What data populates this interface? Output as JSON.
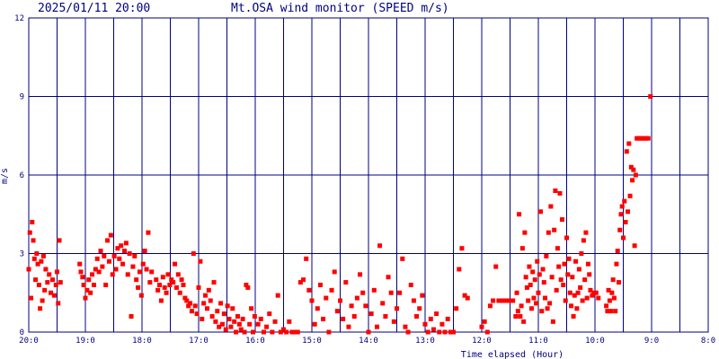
{
  "header": {
    "timestamp": "2025/01/11 20:00",
    "title": "Mt.OSA wind monitor (SPEED m/s)"
  },
  "chart_data": {
    "type": "scatter",
    "title": "Mt.OSA wind monitor (SPEED m/s)",
    "xlabel": "Time elapsed (Hour)",
    "ylabel": "m/s",
    "x_unit": "hours before 20:00",
    "xlim": [
      0,
      12
    ],
    "ylim": [
      0,
      12
    ],
    "x_reversed_time_labels": true,
    "x_tick_values": [
      0,
      1,
      2,
      3,
      4,
      5,
      6,
      7,
      8,
      9,
      10,
      11,
      12
    ],
    "x_tick_labels": [
      "20:0",
      "19:0",
      "18:0",
      "17:0",
      "16:0",
      "15:0",
      "14:0",
      "13:0",
      "12:0",
      "11:0",
      "10:0",
      "9:0",
      "8:0"
    ],
    "y_ticks": [
      0,
      3,
      6,
      9,
      12
    ],
    "y_tick_labels": [
      "0",
      "3",
      "6",
      "9",
      "12"
    ],
    "grid": true,
    "marker_color": "#ff0000",
    "grid_color": "#000080",
    "series": [
      {
        "points": [
          [
            0.0,
            2.4
          ],
          [
            0.02,
            3.8
          ],
          [
            0.04,
            1.3
          ],
          [
            0.06,
            4.2
          ],
          [
            0.08,
            3.5
          ],
          [
            0.1,
            2.8
          ],
          [
            0.12,
            2.0
          ],
          [
            0.14,
            3.0
          ],
          [
            0.16,
            2.6
          ],
          [
            0.18,
            1.8
          ],
          [
            0.2,
            0.9
          ],
          [
            0.22,
            2.7
          ],
          [
            0.24,
            1.2
          ],
          [
            0.26,
            2.9
          ],
          [
            0.28,
            1.6
          ],
          [
            0.3,
            2.4
          ],
          [
            0.33,
            1.9
          ],
          [
            0.36,
            2.2
          ],
          [
            0.39,
            1.5
          ],
          [
            0.42,
            2.0
          ],
          [
            0.45,
            1.4
          ],
          [
            0.48,
            1.8
          ],
          [
            0.5,
            2.3
          ],
          [
            0.52,
            1.1
          ],
          [
            0.54,
            3.5
          ],
          [
            0.56,
            1.9
          ],
          [
            0.9,
            2.6
          ],
          [
            0.92,
            2.3
          ],
          [
            0.95,
            2.1
          ],
          [
            0.97,
            1.8
          ],
          [
            1.0,
            1.3
          ],
          [
            1.03,
            1.6
          ],
          [
            1.06,
            2.0
          ],
          [
            1.09,
            1.5
          ],
          [
            1.12,
            2.2
          ],
          [
            1.15,
            1.8
          ],
          [
            1.18,
            2.4
          ],
          [
            1.21,
            2.8
          ],
          [
            1.24,
            2.3
          ],
          [
            1.27,
            3.1
          ],
          [
            1.3,
            2.5
          ],
          [
            1.33,
            2.9
          ],
          [
            1.36,
            1.8
          ],
          [
            1.39,
            3.5
          ],
          [
            1.42,
            2.7
          ],
          [
            1.45,
            3.7
          ],
          [
            1.48,
            2.2
          ],
          [
            1.51,
            2.9
          ],
          [
            1.54,
            2.4
          ],
          [
            1.57,
            3.2
          ],
          [
            1.6,
            2.8
          ],
          [
            1.63,
            3.3
          ],
          [
            1.66,
            2.6
          ],
          [
            1.69,
            3.1
          ],
          [
            1.72,
            3.4
          ],
          [
            1.75,
            2.2
          ],
          [
            1.78,
            3.0
          ],
          [
            1.81,
            0.6
          ],
          [
            1.84,
            2.5
          ],
          [
            1.87,
            2.9
          ],
          [
            1.9,
            2.0
          ],
          [
            1.93,
            1.7
          ],
          [
            1.96,
            2.3
          ],
          [
            1.99,
            1.4
          ],
          [
            2.02,
            2.6
          ],
          [
            2.05,
            3.1
          ],
          [
            2.08,
            2.4
          ],
          [
            2.11,
            3.8
          ],
          [
            2.14,
            1.9
          ],
          [
            2.17,
            2.3
          ],
          [
            2.25,
            2.0
          ],
          [
            2.28,
            1.6
          ],
          [
            2.31,
            1.8
          ],
          [
            2.34,
            1.2
          ],
          [
            2.37,
            2.1
          ],
          [
            2.4,
            1.7
          ],
          [
            2.43,
            1.5
          ],
          [
            2.46,
            2.2
          ],
          [
            2.49,
            1.8
          ],
          [
            2.52,
            2.0
          ],
          [
            2.55,
            1.9
          ],
          [
            2.58,
            2.6
          ],
          [
            2.61,
            1.7
          ],
          [
            2.64,
            2.2
          ],
          [
            2.67,
            1.5
          ],
          [
            2.7,
            2.0
          ],
          [
            2.73,
            1.8
          ],
          [
            2.76,
            1.3
          ],
          [
            2.79,
            1.2
          ],
          [
            2.82,
            1.0
          ],
          [
            2.85,
            1.1
          ],
          [
            2.88,
            0.8
          ],
          [
            2.91,
            3.0
          ],
          [
            2.94,
            1.0
          ],
          [
            2.97,
            0.7
          ],
          [
            3.0,
            1.7
          ],
          [
            3.03,
            2.7
          ],
          [
            3.06,
            0.5
          ],
          [
            3.09,
            1.1
          ],
          [
            3.12,
            1.4
          ],
          [
            3.15,
            0.9
          ],
          [
            3.18,
            1.6
          ],
          [
            3.21,
            1.2
          ],
          [
            3.24,
            0.6
          ],
          [
            3.27,
            1.9
          ],
          [
            3.3,
            0.4
          ],
          [
            3.33,
            0.8
          ],
          [
            3.36,
            0.2
          ],
          [
            3.39,
            1.1
          ],
          [
            3.42,
            0.3
          ],
          [
            3.45,
            0.7
          ],
          [
            3.48,
            0.1
          ],
          [
            3.51,
            1.0
          ],
          [
            3.54,
            0.5
          ],
          [
            3.57,
            0.2
          ],
          [
            3.6,
            0.9
          ],
          [
            3.63,
            0.4
          ],
          [
            3.66,
            0.0
          ],
          [
            3.69,
            0.6
          ],
          [
            3.72,
            0.3
          ],
          [
            3.75,
            0.1
          ],
          [
            3.78,
            0.5
          ],
          [
            3.81,
            0.0
          ],
          [
            3.84,
            1.8
          ],
          [
            3.87,
            1.7
          ],
          [
            3.9,
            0.3
          ],
          [
            3.93,
            0.9
          ],
          [
            3.96,
            0.0
          ],
          [
            3.99,
            0.6
          ],
          [
            4.05,
            0.3
          ],
          [
            4.1,
            0.5
          ],
          [
            4.15,
            0.0
          ],
          [
            4.2,
            0.2
          ],
          [
            4.25,
            0.7
          ],
          [
            4.3,
            0.0
          ],
          [
            4.35,
            0.4
          ],
          [
            4.4,
            1.4
          ],
          [
            4.45,
            0.0
          ],
          [
            4.5,
            0.1
          ],
          [
            4.55,
            0.0
          ],
          [
            4.6,
            0.4
          ],
          [
            4.65,
            0.0
          ],
          [
            4.7,
            0.0
          ],
          [
            4.75,
            0.0
          ],
          [
            4.8,
            1.9
          ],
          [
            4.85,
            2.0
          ],
          [
            4.9,
            2.8
          ],
          [
            4.95,
            1.6
          ],
          [
            5.0,
            1.2
          ],
          [
            5.05,
            0.3
          ],
          [
            5.1,
            0.9
          ],
          [
            5.15,
            1.8
          ],
          [
            5.2,
            0.5
          ],
          [
            5.25,
            1.3
          ],
          [
            5.3,
            0.0
          ],
          [
            5.35,
            1.6
          ],
          [
            5.4,
            2.3
          ],
          [
            5.45,
            0.8
          ],
          [
            5.5,
            1.2
          ],
          [
            5.55,
            0.5
          ],
          [
            5.6,
            1.9
          ],
          [
            5.65,
            0.2
          ],
          [
            5.7,
            1.0
          ],
          [
            5.75,
            0.6
          ],
          [
            5.8,
            1.3
          ],
          [
            5.85,
            2.2
          ],
          [
            5.9,
            1.5
          ],
          [
            5.95,
            1.0
          ],
          [
            6.0,
            0.0
          ],
          [
            6.05,
            0.7
          ],
          [
            6.1,
            1.6
          ],
          [
            6.15,
            0.2
          ],
          [
            6.2,
            3.3
          ],
          [
            6.25,
            1.1
          ],
          [
            6.3,
            0.6
          ],
          [
            6.35,
            2.1
          ],
          [
            6.4,
            1.5
          ],
          [
            6.45,
            0.4
          ],
          [
            6.5,
            0.9
          ],
          [
            6.55,
            1.5
          ],
          [
            6.6,
            2.8
          ],
          [
            6.65,
            0.2
          ],
          [
            6.7,
            0.0
          ],
          [
            6.75,
            1.8
          ],
          [
            6.8,
            1.2
          ],
          [
            6.85,
            0.6
          ],
          [
            6.9,
            0.9
          ],
          [
            6.95,
            1.4
          ],
          [
            7.0,
            0.3
          ],
          [
            7.05,
            0.0
          ],
          [
            7.1,
            0.5
          ],
          [
            7.15,
            0.1
          ],
          [
            7.2,
            0.7
          ],
          [
            7.25,
            0.0
          ],
          [
            7.3,
            0.3
          ],
          [
            7.35,
            0.0
          ],
          [
            7.4,
            0.5
          ],
          [
            7.45,
            0.0
          ],
          [
            7.5,
            0.0
          ],
          [
            7.55,
            0.9
          ],
          [
            7.6,
            2.4
          ],
          [
            7.65,
            3.2
          ],
          [
            7.7,
            1.4
          ],
          [
            7.75,
            1.3
          ],
          [
            8.0,
            0.2
          ],
          [
            8.05,
            0.4
          ],
          [
            8.1,
            0.0
          ],
          [
            8.15,
            1.0
          ],
          [
            8.2,
            1.2
          ],
          [
            8.25,
            2.5
          ],
          [
            8.3,
            1.2
          ],
          [
            8.35,
            1.2
          ],
          [
            8.4,
            1.2
          ],
          [
            8.45,
            1.2
          ],
          [
            8.5,
            1.2
          ],
          [
            8.55,
            1.2
          ],
          [
            8.6,
            0.6
          ],
          [
            8.62,
            1.5
          ],
          [
            8.64,
            0.8
          ],
          [
            8.66,
            4.5
          ],
          [
            8.68,
            0.6
          ],
          [
            8.7,
            1.0
          ],
          [
            8.72,
            3.2
          ],
          [
            8.74,
            0.4
          ],
          [
            8.76,
            3.8
          ],
          [
            8.78,
            2.1
          ],
          [
            8.8,
            1.7
          ],
          [
            8.82,
            1.2
          ],
          [
            8.84,
            2.5
          ],
          [
            8.86,
            1.8
          ],
          [
            8.88,
            0.9
          ],
          [
            8.9,
            2.3
          ],
          [
            8.92,
            1.3
          ],
          [
            8.94,
            2.0
          ],
          [
            8.96,
            1.1
          ],
          [
            8.98,
            2.7
          ],
          [
            9.0,
            1.5
          ],
          [
            9.02,
            2.2
          ],
          [
            9.04,
            4.6
          ],
          [
            9.06,
            0.8
          ],
          [
            9.08,
            2.4
          ],
          [
            9.1,
            1.9
          ],
          [
            9.12,
            1.3
          ],
          [
            9.14,
            2.9
          ],
          [
            9.16,
            0.9
          ],
          [
            9.18,
            3.8
          ],
          [
            9.2,
            1.1
          ],
          [
            9.22,
            4.8
          ],
          [
            9.24,
            2.1
          ],
          [
            9.26,
            0.4
          ],
          [
            9.28,
            3.9
          ],
          [
            9.3,
            5.4
          ],
          [
            9.32,
            1.6
          ],
          [
            9.34,
            3.2
          ],
          [
            9.36,
            2.5
          ],
          [
            9.38,
            5.3
          ],
          [
            9.4,
            2.0
          ],
          [
            9.42,
            4.3
          ],
          [
            9.44,
            1.8
          ],
          [
            9.46,
            2.6
          ],
          [
            9.48,
            1.2
          ],
          [
            9.5,
            3.6
          ],
          [
            9.52,
            2.2
          ],
          [
            9.54,
            2.8
          ],
          [
            9.56,
            1.5
          ],
          [
            9.58,
            1.0
          ],
          [
            9.6,
            2.1
          ],
          [
            9.62,
            0.6
          ],
          [
            9.64,
            1.4
          ],
          [
            9.66,
            2.7
          ],
          [
            9.68,
            0.9
          ],
          [
            9.7,
            1.5
          ],
          [
            9.72,
            2.4
          ],
          [
            9.74,
            1.7
          ],
          [
            9.76,
            3.0
          ],
          [
            9.78,
            1.2
          ],
          [
            9.8,
            3.5
          ],
          [
            9.82,
            2.0
          ],
          [
            9.84,
            3.8
          ],
          [
            9.86,
            1.3
          ],
          [
            9.88,
            2.6
          ],
          [
            9.9,
            2.2
          ],
          [
            9.92,
            1.6
          ],
          [
            9.95,
            1.4
          ],
          [
            9.98,
            1.5
          ],
          [
            10.02,
            1.5
          ],
          [
            10.06,
            1.3
          ],
          [
            10.2,
            1.0
          ],
          [
            10.22,
            0.8
          ],
          [
            10.24,
            1.6
          ],
          [
            10.26,
            1.2
          ],
          [
            10.28,
            0.8
          ],
          [
            10.3,
            1.5
          ],
          [
            10.32,
            2.0
          ],
          [
            10.34,
            1.3
          ],
          [
            10.36,
            0.8
          ],
          [
            10.38,
            2.6
          ],
          [
            10.4,
            3.1
          ],
          [
            10.42,
            1.9
          ],
          [
            10.44,
            3.9
          ],
          [
            10.46,
            4.5
          ],
          [
            10.48,
            4.8
          ],
          [
            10.5,
            3.6
          ],
          [
            10.52,
            5.0
          ],
          [
            10.54,
            4.2
          ],
          [
            10.56,
            6.9
          ],
          [
            10.58,
            4.6
          ],
          [
            10.6,
            7.2
          ],
          [
            10.62,
            5.2
          ],
          [
            10.64,
            6.3
          ],
          [
            10.66,
            5.8
          ],
          [
            10.68,
            6.2
          ],
          [
            10.7,
            3.3
          ],
          [
            10.72,
            6.0
          ],
          [
            10.74,
            7.4
          ],
          [
            10.78,
            7.4
          ],
          [
            10.82,
            7.4
          ],
          [
            10.86,
            7.4
          ],
          [
            10.9,
            7.4
          ],
          [
            10.94,
            7.4
          ],
          [
            10.98,
            9.0
          ]
        ]
      }
    ]
  }
}
